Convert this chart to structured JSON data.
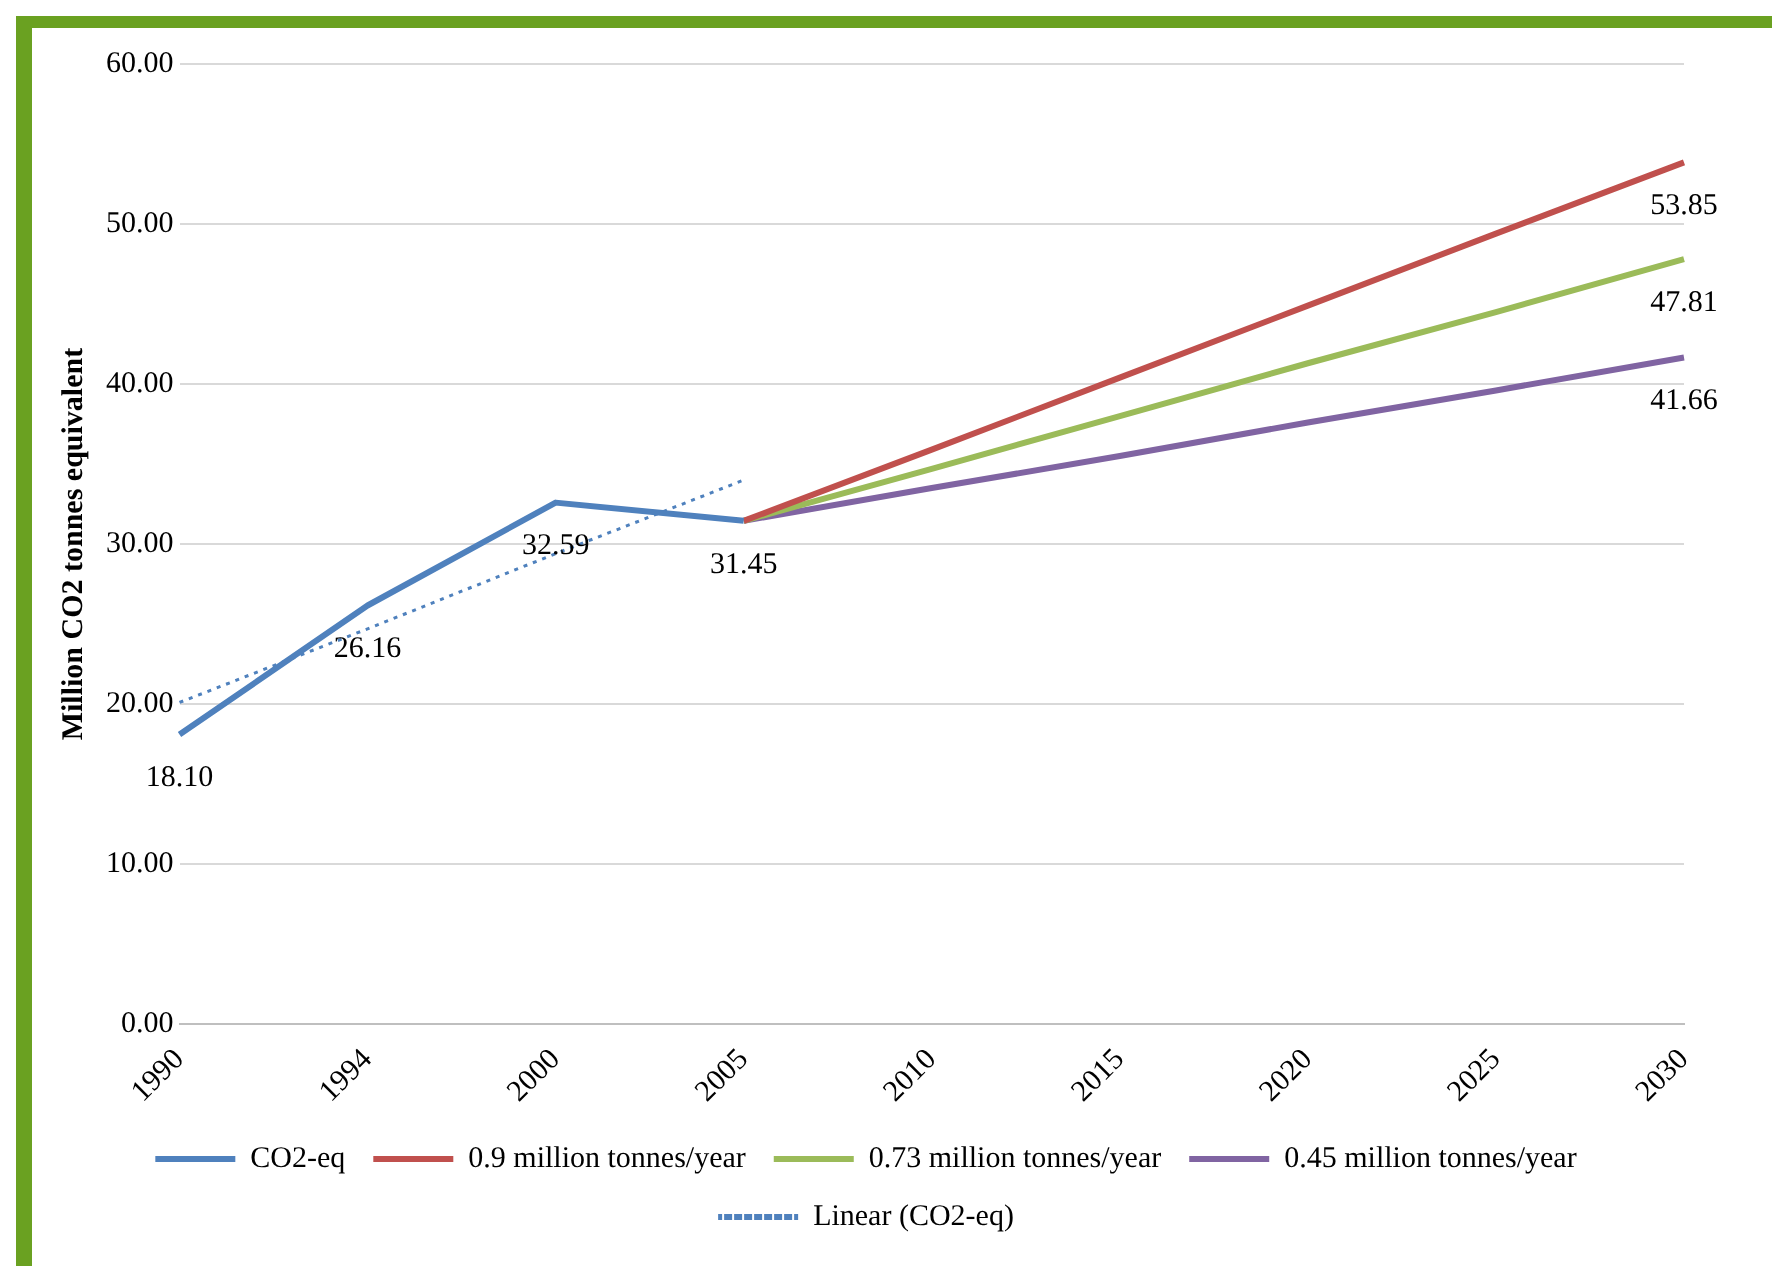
{
  "chart_data": {
    "type": "line",
    "ylabel": "Million CO2 tonnes equivalent",
    "categories": [
      "1990",
      "1994",
      "2000",
      "2005",
      "2010",
      "2015",
      "2020",
      "2025",
      "2030"
    ],
    "series": [
      {
        "name": "CO2-eq",
        "color": "#4f81bd",
        "values": [
          18.1,
          26.16,
          32.59,
          31.45,
          null,
          null,
          null,
          null,
          null
        ],
        "value_labels": [
          "18.10",
          "26.16",
          "32.59",
          "31.45",
          null,
          null,
          null,
          null,
          null
        ]
      },
      {
        "name": "0.9 million tonnes/year",
        "color": "#c0504d",
        "values": [
          null,
          null,
          null,
          31.45,
          35.9,
          40.4,
          44.9,
          49.4,
          53.85
        ],
        "value_labels": [
          null,
          null,
          null,
          null,
          null,
          null,
          null,
          null,
          "53.85"
        ]
      },
      {
        "name": "0.73 million tonnes/year",
        "color": "#9bbb59",
        "values": [
          null,
          null,
          null,
          31.45,
          34.7,
          38.0,
          41.3,
          44.5,
          47.81
        ],
        "value_labels": [
          null,
          null,
          null,
          null,
          null,
          null,
          null,
          null,
          "47.81"
        ]
      },
      {
        "name": "0.45 million tonnes/year",
        "color": "#8064a2",
        "values": [
          null,
          null,
          null,
          31.45,
          33.5,
          35.5,
          37.6,
          39.6,
          41.66
        ],
        "value_labels": [
          null,
          null,
          null,
          null,
          null,
          null,
          null,
          null,
          "41.66"
        ]
      },
      {
        "name": "Linear (CO2-eq)",
        "color": "#4f81bd",
        "line_style": "dotted",
        "values": [
          20.1,
          24.7,
          29.4,
          34.0,
          null,
          null,
          null,
          null,
          null
        ]
      }
    ],
    "ylim": [
      0,
      60
    ],
    "yticks": [
      {
        "value": 0,
        "label": "0.00"
      },
      {
        "value": 10,
        "label": "10.00"
      },
      {
        "value": 20,
        "label": "20.00"
      },
      {
        "value": 30,
        "label": "30.00"
      },
      {
        "value": 40,
        "label": "40.00"
      },
      {
        "value": 50,
        "label": "50.00"
      },
      {
        "value": 60,
        "label": "60.00"
      }
    ],
    "grid": "y",
    "legend": "bottom",
    "marker": "none",
    "line_style": "solid"
  }
}
